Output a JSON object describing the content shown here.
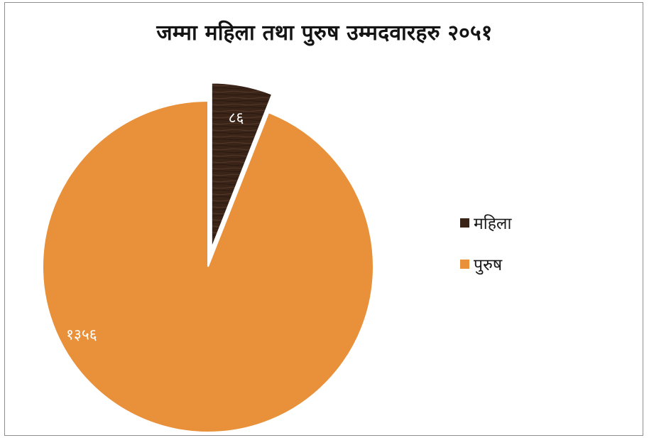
{
  "chart_data": {
    "type": "pie",
    "title": "जम्मा महिला तथा पुरुष उम्मदवारहरु २०५१",
    "slices": [
      {
        "label": "महिला",
        "value": 86,
        "value_label": "८६",
        "color": "#3a2418",
        "exploded": true
      },
      {
        "label": "पुरुष",
        "value": 1356,
        "value_label": "१३५६",
        "color": "#e8913a",
        "exploded": false
      }
    ],
    "legend_position": "right"
  }
}
